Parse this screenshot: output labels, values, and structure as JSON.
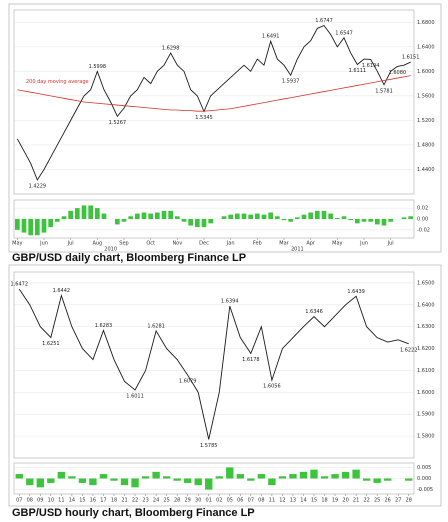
{
  "chart_data": [
    {
      "type": "line",
      "caption": "GBP/USD daily chart, Bloomberg Finance LP",
      "categories": [
        "May",
        null,
        null,
        null,
        "Jun",
        null,
        null,
        null,
        "Jul",
        null,
        null,
        null,
        "Aug",
        null,
        null,
        null,
        "Sep",
        null,
        null,
        null,
        "Oct",
        null,
        null,
        null,
        "Nov",
        null,
        null,
        null,
        "Dec",
        null,
        null,
        null,
        "Jan",
        null,
        null,
        null,
        "Feb",
        null,
        null,
        null,
        "Mar",
        null,
        null,
        null,
        "Apr",
        null,
        null,
        null,
        "May",
        null,
        null,
        null,
        "Jun",
        null,
        null,
        null,
        "Jul",
        null,
        null,
        null
      ],
      "year_labels": [
        "2010",
        "2011"
      ],
      "series": [
        {
          "name": "GBP/USD",
          "color": "#1a1a1a",
          "values": [
            1.49,
            1.47,
            1.45,
            1.4229,
            1.44,
            1.46,
            1.48,
            1.5,
            1.52,
            1.54,
            1.56,
            1.57,
            1.5998,
            1.57,
            1.55,
            1.5267,
            1.54,
            1.56,
            1.57,
            1.59,
            1.58,
            1.6,
            1.61,
            1.6298,
            1.61,
            1.6,
            1.57,
            1.56,
            1.5345,
            1.56,
            1.57,
            1.58,
            1.59,
            1.6,
            1.61,
            1.6,
            1.62,
            1.61,
            1.6491,
            1.62,
            1.61,
            1.5937,
            1.62,
            1.64,
            1.65,
            1.67,
            1.6747,
            1.66,
            1.64,
            1.6547,
            1.63,
            1.6111,
            1.62,
            1.6194,
            1.6,
            1.5781,
            1.6,
            1.608,
            1.61,
            1.6151
          ],
          "value_labels": [
            null,
            null,
            null,
            "1.4229",
            null,
            null,
            null,
            null,
            null,
            null,
            null,
            null,
            "1.5998",
            null,
            null,
            "1.5267",
            null,
            null,
            null,
            null,
            null,
            null,
            null,
            "1.6298",
            null,
            null,
            null,
            null,
            "1.5345",
            null,
            null,
            null,
            null,
            null,
            null,
            null,
            null,
            null,
            "1.6491",
            null,
            null,
            "1.5937",
            null,
            null,
            null,
            null,
            "1.6747",
            null,
            null,
            "1.6547",
            null,
            "1.6111",
            null,
            "1.6194",
            null,
            "1.5781",
            null,
            "1.6080",
            null,
            "1.6151"
          ]
        },
        {
          "name": "200 day moving average",
          "color": "#d9302c",
          "values": [
            1.57,
            1.568,
            1.566,
            1.564,
            1.562,
            1.56,
            1.558,
            1.556,
            1.554,
            1.552,
            1.55,
            1.549,
            1.548,
            1.547,
            1.546,
            1.545,
            1.544,
            1.543,
            1.542,
            1.541,
            1.54,
            1.539,
            1.538,
            1.537,
            1.537,
            1.536,
            1.536,
            1.535,
            1.535,
            1.536,
            1.537,
            1.538,
            1.539,
            1.541,
            1.543,
            1.545,
            1.547,
            1.549,
            1.551,
            1.553,
            1.555,
            1.557,
            1.559,
            1.561,
            1.563,
            1.565,
            1.567,
            1.569,
            1.571,
            1.573,
            1.575,
            1.577,
            1.579,
            1.581,
            1.583,
            1.585,
            1.587,
            1.589,
            1.591,
            1.593
          ]
        }
      ],
      "ylim": [
        1.4,
        1.7
      ],
      "yticks": [
        {
          "value": 1.44,
          "label": "1.4400"
        },
        {
          "value": 1.48,
          "label": "1.4800"
        },
        {
          "value": 1.52,
          "label": "1.5200"
        },
        {
          "value": 1.56,
          "label": "1.5600"
        },
        {
          "value": 1.6,
          "label": "1.6000"
        },
        {
          "value": 1.64,
          "label": "1.6400"
        },
        {
          "value": 1.68,
          "label": "1.6800"
        }
      ],
      "indicator": {
        "color": "#3cc43c",
        "values": [
          -0.02,
          -0.025,
          -0.03,
          -0.03,
          -0.025,
          -0.015,
          -0.005,
          0.005,
          0.015,
          0.02,
          0.025,
          0.025,
          0.02,
          0.01,
          0,
          -0.01,
          -0.005,
          0.005,
          0.01,
          0.012,
          0.01,
          0.012,
          0.015,
          0.015,
          0.005,
          -0.005,
          -0.012,
          -0.015,
          -0.015,
          -0.008,
          0,
          0.005,
          0.008,
          0.01,
          0.01,
          0.008,
          0.01,
          0.008,
          0.012,
          0.005,
          -0.002,
          -0.005,
          0.003,
          0.008,
          0.012,
          0.015,
          0.015,
          0.01,
          0.002,
          0.005,
          -0.002,
          -0.008,
          -0.005,
          -0.005,
          -0.01,
          -0.012,
          -0.005,
          0,
          0.003,
          0.005
        ],
        "ylim": [
          -0.035,
          0.035
        ],
        "yticks": [
          -0.02,
          {
            "value": 0,
            "label": "0.00"
          },
          0.02
        ]
      }
    },
    {
      "type": "line",
      "caption": "GBP/USD hourly chart, Bloomberg Finance LP",
      "categories": [
        "07",
        "08",
        "09",
        "10",
        "11",
        "14",
        "15",
        "16",
        "17",
        "18",
        "21",
        "22",
        "23",
        "24",
        "25",
        "28",
        "29",
        "30",
        "01",
        "02",
        "05",
        "06",
        "07",
        "08",
        "11",
        "12",
        "13",
        "14",
        "15",
        "18",
        "19",
        "20",
        "21",
        "22",
        "25",
        "26",
        "27",
        "28"
      ],
      "series": [
        {
          "name": "GBP/USD",
          "color": "#1a1a1a",
          "values": [
            1.6472,
            1.64,
            1.63,
            1.6251,
            1.6442,
            1.63,
            1.62,
            1.615,
            1.6283,
            1.615,
            1.605,
            1.6011,
            1.61,
            1.6281,
            1.62,
            1.615,
            1.6079,
            1.6,
            1.5785,
            1.6,
            1.6394,
            1.625,
            1.6178,
            1.63,
            1.6056,
            1.62,
            1.625,
            1.63,
            1.6346,
            1.63,
            1.635,
            1.64,
            1.6439,
            1.63,
            1.625,
            1.623,
            1.624,
            1.6222
          ],
          "value_labels": [
            "1.6472",
            null,
            null,
            "1.6251",
            "1.6442",
            null,
            null,
            null,
            "1.6283",
            null,
            null,
            "1.6011",
            null,
            "1.6281",
            null,
            null,
            "1.6079",
            null,
            "1.5785",
            null,
            "1.6394",
            null,
            "1.6178",
            null,
            "1.6056",
            null,
            null,
            null,
            "1.6346",
            null,
            null,
            null,
            "1.6439",
            null,
            null,
            null,
            null,
            "1.6222"
          ]
        }
      ],
      "ylim": [
        1.57,
        1.655
      ],
      "yticks": [
        {
          "value": 1.58,
          "label": "1.5800"
        },
        {
          "value": 1.59,
          "label": "1.5900"
        },
        {
          "value": 1.6,
          "label": "1.6000"
        },
        {
          "value": 1.61,
          "label": "1.6100"
        },
        {
          "value": 1.62,
          "label": "1.6200"
        },
        {
          "value": 1.63,
          "label": "1.6300"
        },
        {
          "value": 1.64,
          "label": "1.6400"
        },
        {
          "value": 1.65,
          "label": "1.6500"
        }
      ],
      "indicator": {
        "color": "#3cc43c",
        "values": [
          0.002,
          -0.003,
          -0.004,
          -0.002,
          0.003,
          0.001,
          -0.002,
          -0.003,
          0.002,
          -0.001,
          -0.003,
          -0.004,
          0.001,
          0.003,
          0.001,
          -0.001,
          -0.002,
          -0.003,
          -0.005,
          0.001,
          0.005,
          0.002,
          -0.001,
          0.002,
          -0.003,
          0.001,
          0.002,
          0.003,
          0.004,
          0.001,
          0.002,
          0.003,
          0.004,
          -0.001,
          -0.002,
          -0.001,
          0,
          -0.001
        ],
        "ylim": [
          -0.007,
          0.007
        ],
        "yticks": [
          -0.005,
          {
            "value": 0,
            "label": "0.000"
          },
          0.005
        ]
      }
    }
  ]
}
